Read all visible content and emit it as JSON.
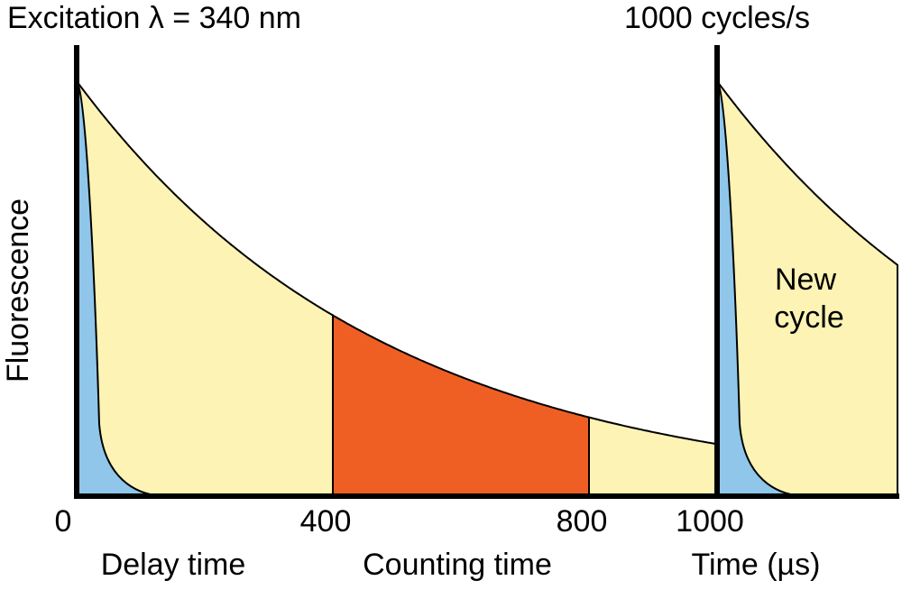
{
  "title_left": "Excitation λ = 340 nm",
  "title_right": "1000 cycles/s",
  "y_label": "Fluorescence",
  "x_ticks": [
    0,
    400,
    800,
    1000
  ],
  "x_label": "Time (µs)",
  "regions": [
    "Delay time",
    "Counting time"
  ],
  "annotation": [
    "New",
    "cycle"
  ]
}
